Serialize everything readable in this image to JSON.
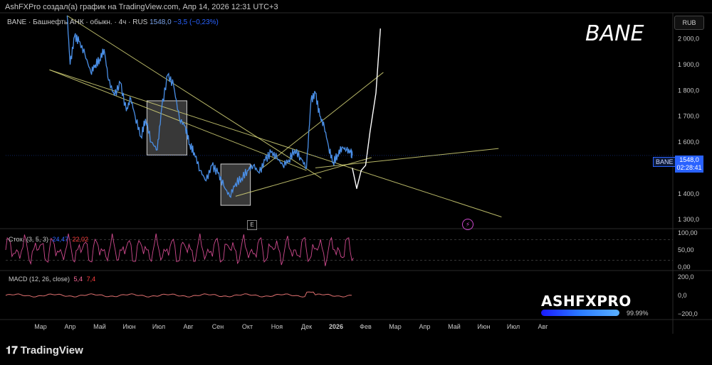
{
  "header": {
    "text": "AshFXPro создал(а) график на TradingView.com, Апр 14, 2026 12:31 UTC+3"
  },
  "legend": {
    "symbol": "BANE · Башнефть АНК · обыкн. · 4ч · RUS",
    "last": "1548,0",
    "change": "−3,5 (−0,23%)"
  },
  "currency": "RUB",
  "ticker_annotation": "BANE",
  "price_label": {
    "symbol": "BANE",
    "price": "1548,0",
    "countdown": "02:28:41"
  },
  "stoch": {
    "label": "Стох. (3, 5, 3)",
    "k": "24,47",
    "d": "22,02",
    "ticks": [
      "100,00",
      "50,00",
      "0,00"
    ]
  },
  "macd": {
    "label": "MACD (12, 26, close)",
    "v1": "5,4",
    "v2": "7,4",
    "ticks": [
      "200,0",
      "0,0",
      "−200,0"
    ]
  },
  "watermark": {
    "name": "ASHFXPRO",
    "pct": "99.99%"
  },
  "brand": {
    "name": "TradingView"
  },
  "markers": {
    "earnings": "E",
    "event": "⚡"
  },
  "colors": {
    "price_line": "#4a8fe7",
    "trendline": "#d8d77a",
    "stoch_line": "#d04a8f",
    "macd_line": "#e07070",
    "box": "#9a9a9a"
  },
  "chart_data": {
    "type": "line",
    "title": "BANE",
    "x_months": [
      "Мар",
      "Апр",
      "Май",
      "Июн",
      "Июл",
      "Авг",
      "Сен",
      "Окт",
      "Ноя",
      "Дек",
      "2026",
      "Фев",
      "Мар",
      "Апр",
      "Май",
      "Июн",
      "Июл",
      "Авг"
    ],
    "y_ticks": [
      2000,
      1900,
      1800,
      1700,
      1600,
      1500,
      1400,
      1300
    ],
    "ylim": [
      1270,
      2090
    ],
    "series": [
      {
        "name": "BANE",
        "x": [
          3.9,
          4.0,
          4.15,
          4.3,
          4.5,
          4.7,
          4.85,
          5.0,
          5.15,
          5.3,
          5.5,
          5.7,
          5.9,
          6.05,
          6.2,
          6.4,
          6.55,
          6.75,
          6.95,
          7.1,
          7.3,
          7.5,
          7.7,
          7.9,
          8.05,
          8.2,
          8.4,
          8.6,
          8.8,
          9.0,
          9.2,
          9.4,
          9.6,
          9.8,
          10.0,
          10.2,
          10.4,
          10.6,
          10.8,
          11.0,
          11.2,
          11.4,
          11.6,
          11.8,
          12.0,
          12.15,
          12.3,
          12.45,
          12.6,
          12.75,
          12.9,
          13.05,
          13.2,
          13.35,
          13.5,
          13.55
        ],
        "values": [
          2090,
          1900,
          2010,
          1990,
          1940,
          1870,
          1900,
          1920,
          1960,
          1840,
          1780,
          1830,
          1720,
          1770,
          1700,
          1620,
          1690,
          1600,
          1570,
          1730,
          1860,
          1820,
          1690,
          1660,
          1590,
          1560,
          1490,
          1450,
          1510,
          1480,
          1430,
          1390,
          1440,
          1460,
          1490,
          1510,
          1480,
          1530,
          1560,
          1540,
          1510,
          1530,
          1570,
          1540,
          1500,
          1760,
          1790,
          1700,
          1660,
          1580,
          1520,
          1550,
          1580,
          1570,
          1560,
          1548
        ]
      },
      {
        "name": "Projection",
        "x": [
          13.55,
          13.7,
          13.85,
          14.0,
          14.15,
          14.35,
          14.5
        ],
        "values": [
          1500,
          1420,
          1490,
          1510,
          1640,
          1790,
          2040
        ]
      }
    ],
    "boxes": [
      {
        "x0": 6.6,
        "x1": 7.95,
        "y0": 1550,
        "y1": 1760
      },
      {
        "x0": 9.1,
        "x1": 10.1,
        "y0": 1355,
        "y1": 1515
      }
    ],
    "trendlines": [
      {
        "x0": 3.9,
        "y0": 2090,
        "x1": 12.5,
        "y1": 1460
      },
      {
        "x0": 3.3,
        "y0": 1880,
        "x1": 12.0,
        "y1": 1490
      },
      {
        "x0": 3.3,
        "y0": 1880,
        "x1": 18.6,
        "y1": 1310
      },
      {
        "x0": 9.6,
        "y0": 1390,
        "x1": 14.2,
        "y1": 1540
      },
      {
        "x0": 10.4,
        "y0": 1490,
        "x1": 14.6,
        "y1": 1870
      },
      {
        "x0": 12.3,
        "y0": 1500,
        "x1": 18.5,
        "y1": 1575
      }
    ],
    "stoch": {
      "ticks": [
        100,
        50,
        0
      ]
    },
    "macd": {
      "ticks": [
        200,
        0,
        -200
      ]
    }
  }
}
